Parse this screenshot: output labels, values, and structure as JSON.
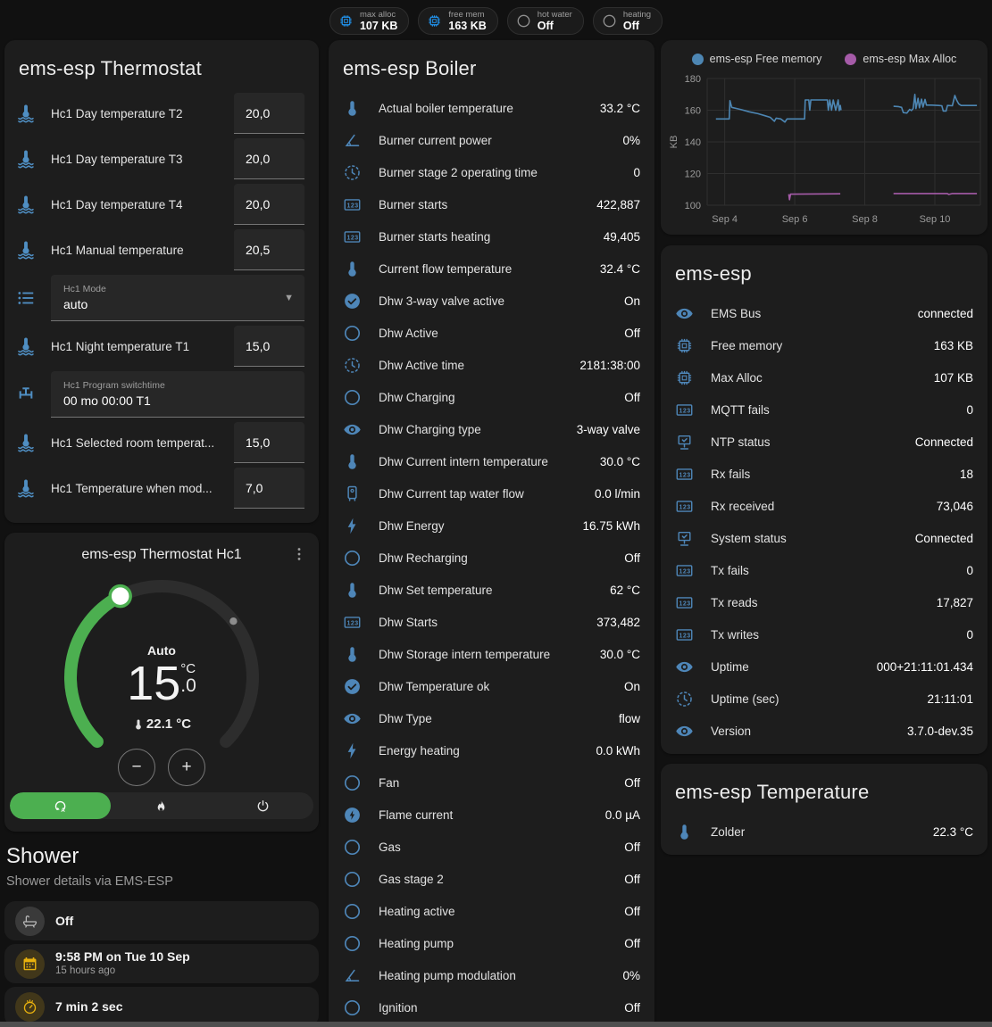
{
  "chips": [
    {
      "icon": "chip",
      "label": "max alloc",
      "value": "107 KB",
      "active": true
    },
    {
      "icon": "chip",
      "label": "free mem",
      "value": "163 KB",
      "active": true
    },
    {
      "icon": "circle",
      "label": "hot water",
      "value": "Off",
      "active": false
    },
    {
      "icon": "circle",
      "label": "heating",
      "value": "Off",
      "active": false
    }
  ],
  "thermostat_card": {
    "title": "ems-esp Thermostat",
    "fields": [
      {
        "icon": "coolant-thermometer",
        "type": "number",
        "label": "Hc1 Day temperature T2",
        "value": "20,0"
      },
      {
        "icon": "coolant-thermometer",
        "type": "number",
        "label": "Hc1 Day temperature T3",
        "value": "20,0"
      },
      {
        "icon": "coolant-thermometer",
        "type": "number",
        "label": "Hc1 Day temperature T4",
        "value": "20,0"
      },
      {
        "icon": "coolant-thermometer",
        "type": "number",
        "label": "Hc1 Manual temperature",
        "value": "20,5"
      },
      {
        "icon": "list",
        "type": "select",
        "label": "Hc1 Mode",
        "value": "auto"
      },
      {
        "icon": "coolant-thermometer",
        "type": "number",
        "label": "Hc1 Night temperature T1",
        "value": "15,0"
      },
      {
        "icon": "valve",
        "type": "text",
        "label": "Hc1 Program switchtime",
        "value": "00 mo 00:00 T1"
      },
      {
        "icon": "coolant-thermometer",
        "type": "number",
        "label": "Hc1 Selected room temperat...",
        "value": "15,0"
      },
      {
        "icon": "coolant-thermometer",
        "type": "number",
        "label": "Hc1 Temperature when mod...",
        "value": "7,0"
      }
    ]
  },
  "dial_card": {
    "title": "ems-esp Thermostat Hc1",
    "mode_label": "Auto",
    "target_int": "15",
    "target_frac": ".0",
    "unit": "°C",
    "current": "22.1 °C",
    "minus": "−",
    "plus": "+",
    "modes": [
      {
        "icon": "thermostat-auto",
        "name": "auto",
        "active": true
      },
      {
        "icon": "fire",
        "name": "heat",
        "active": false
      },
      {
        "icon": "power",
        "name": "off",
        "active": false
      }
    ]
  },
  "shower": {
    "title": "Shower",
    "subtitle": "Shower details via EMS-ESP",
    "cards": [
      {
        "icon": "bathtub",
        "style": "gray",
        "title": "Off",
        "subtitle": ""
      },
      {
        "icon": "calendar",
        "style": "amber",
        "title": "9:58 PM on Tue 10 Sep",
        "subtitle": "15 hours ago"
      },
      {
        "icon": "timer",
        "style": "amber",
        "title": "7 min 2 sec",
        "subtitle": ""
      },
      {
        "icon": "snowflake-alert",
        "style": "blue",
        "title": "",
        "subtitle": "",
        "centered": true,
        "cut": true
      }
    ]
  },
  "boiler_card": {
    "title": "ems-esp Boiler",
    "rows": [
      {
        "icon": "thermometer",
        "label": "Actual boiler temperature",
        "value": "33.2 °C"
      },
      {
        "icon": "angle",
        "label": "Burner current power",
        "value": "0%"
      },
      {
        "icon": "clock",
        "label": "Burner stage 2 operating time",
        "value": "0"
      },
      {
        "icon": "counter",
        "label": "Burner starts",
        "value": "422,887"
      },
      {
        "icon": "counter",
        "label": "Burner starts heating",
        "value": "49,405"
      },
      {
        "icon": "thermometer",
        "label": "Current flow temperature",
        "value": "32.4 °C"
      },
      {
        "icon": "check-circle",
        "label": "Dhw 3-way valve active",
        "value": "On"
      },
      {
        "icon": "circle",
        "label": "Dhw Active",
        "value": "Off"
      },
      {
        "icon": "clock",
        "label": "Dhw Active time",
        "value": "2181:38:00"
      },
      {
        "icon": "circle",
        "label": "Dhw Charging",
        "value": "Off"
      },
      {
        "icon": "eye",
        "label": "Dhw Charging type",
        "value": "3-way valve"
      },
      {
        "icon": "thermometer",
        "label": "Dhw Current intern temperature",
        "value": "30.0 °C"
      },
      {
        "icon": "water-boiler",
        "label": "Dhw Current tap water flow",
        "value": "0.0 l/min"
      },
      {
        "icon": "flash",
        "label": "Dhw Energy",
        "value": "16.75 kWh"
      },
      {
        "icon": "circle",
        "label": "Dhw Recharging",
        "value": "Off"
      },
      {
        "icon": "thermometer",
        "label": "Dhw Set temperature",
        "value": "62 °C"
      },
      {
        "icon": "counter",
        "label": "Dhw Starts",
        "value": "373,482"
      },
      {
        "icon": "thermometer",
        "label": "Dhw Storage intern temperature",
        "value": "30.0 °C"
      },
      {
        "icon": "check-circle",
        "label": "Dhw Temperature ok",
        "value": "On"
      },
      {
        "icon": "eye",
        "label": "Dhw Type",
        "value": "flow"
      },
      {
        "icon": "flash",
        "label": "Energy heating",
        "value": "0.0 kWh"
      },
      {
        "icon": "circle",
        "label": "Fan",
        "value": "Off"
      },
      {
        "icon": "flash-circle",
        "label": "Flame current",
        "value": "0.0 µA"
      },
      {
        "icon": "circle",
        "label": "Gas",
        "value": "Off"
      },
      {
        "icon": "circle",
        "label": "Gas stage 2",
        "value": "Off"
      },
      {
        "icon": "circle",
        "label": "Heating active",
        "value": "Off"
      },
      {
        "icon": "circle",
        "label": "Heating pump",
        "value": "Off"
      },
      {
        "icon": "angle",
        "label": "Heating pump modulation",
        "value": "0%"
      },
      {
        "icon": "circle",
        "label": "Ignition",
        "value": "Off"
      }
    ]
  },
  "system_card": {
    "title": "ems-esp",
    "rows": [
      {
        "icon": "eye",
        "label": "EMS Bus",
        "value": "connected"
      },
      {
        "icon": "chip",
        "label": "Free memory",
        "value": "163 KB"
      },
      {
        "icon": "chip",
        "label": "Max Alloc",
        "value": "107 KB"
      },
      {
        "icon": "counter",
        "label": "MQTT fails",
        "value": "0"
      },
      {
        "icon": "network",
        "label": "NTP status",
        "value": "Connected"
      },
      {
        "icon": "counter",
        "label": "Rx fails",
        "value": "18"
      },
      {
        "icon": "counter",
        "label": "Rx received",
        "value": "73,046"
      },
      {
        "icon": "network",
        "label": "System status",
        "value": "Connected"
      },
      {
        "icon": "counter",
        "label": "Tx fails",
        "value": "0"
      },
      {
        "icon": "counter",
        "label": "Tx reads",
        "value": "17,827"
      },
      {
        "icon": "counter",
        "label": "Tx writes",
        "value": "0"
      },
      {
        "icon": "eye",
        "label": "Uptime",
        "value": "000+21:11:01.434"
      },
      {
        "icon": "clock",
        "label": "Uptime (sec)",
        "value": "21:11:01"
      },
      {
        "icon": "eye",
        "label": "Version",
        "value": "3.7.0-dev.35"
      }
    ]
  },
  "temperature_card": {
    "title": "ems-esp Temperature",
    "rows": [
      {
        "icon": "thermometer",
        "label": "Zolder",
        "value": "22.3 °C"
      }
    ]
  },
  "chart_data": {
    "type": "line",
    "title": "",
    "ylabel": "KB",
    "ylim": [
      100,
      180
    ],
    "yticks": [
      100,
      120,
      140,
      160,
      180
    ],
    "xlim": [
      3.5,
      11.3
    ],
    "xticks": [
      {
        "x": 4,
        "label": "Sep 4"
      },
      {
        "x": 6,
        "label": "Sep 6"
      },
      {
        "x": 8,
        "label": "Sep 8"
      },
      {
        "x": 10,
        "label": "Sep 10"
      }
    ],
    "legend_position": "top",
    "grid": true,
    "series": [
      {
        "name": "ems-esp Free memory",
        "color": "#4d86b3",
        "unit": "KB",
        "segments": [
          [
            [
              3.75,
              154.5
            ],
            [
              4.13,
              154.5
            ],
            [
              4.15,
              166
            ],
            [
              4.2,
              161.8
            ],
            [
              4.45,
              160.5
            ],
            [
              4.7,
              159
            ],
            [
              4.95,
              157.8
            ],
            [
              5.15,
              156.5
            ],
            [
              5.3,
              155.5
            ],
            [
              5.42,
              153
            ],
            [
              5.47,
              155
            ],
            [
              5.6,
              154.5
            ],
            [
              5.72,
              152.5
            ],
            [
              5.78,
              154.5
            ],
            [
              6.28,
              154.5
            ],
            [
              6.3,
              166.5
            ],
            [
              6.4,
              166.5
            ],
            [
              6.43,
              160
            ],
            [
              6.46,
              166.5
            ],
            [
              6.93,
              166.5
            ],
            [
              6.96,
              160
            ],
            [
              7.0,
              166.5
            ],
            [
              7.05,
              160
            ],
            [
              7.1,
              166.5
            ],
            [
              7.17,
              160
            ],
            [
              7.24,
              166.5
            ],
            [
              7.27,
              159.8
            ],
            [
              7.3,
              163
            ],
            [
              7.32,
              160
            ]
          ],
          [
            [
              8.82,
              162.5
            ],
            [
              8.95,
              162.3
            ],
            [
              9.05,
              161.8
            ],
            [
              9.1,
              158.5
            ],
            [
              9.2,
              158.2
            ],
            [
              9.28,
              160.5
            ],
            [
              9.33,
              159.8
            ],
            [
              9.38,
              161
            ],
            [
              9.43,
              170
            ],
            [
              9.46,
              161
            ],
            [
              9.52,
              167.5
            ],
            [
              9.56,
              161.5
            ],
            [
              9.62,
              167
            ],
            [
              9.66,
              162
            ],
            [
              9.72,
              166.8
            ],
            [
              9.76,
              163.2
            ],
            [
              9.9,
              163.2
            ],
            [
              10.1,
              163
            ],
            [
              10.2,
              162.8
            ],
            [
              10.24,
              159.5
            ],
            [
              10.32,
              159.5
            ],
            [
              10.36,
              163
            ],
            [
              10.5,
              162.8
            ],
            [
              10.57,
              169.3
            ],
            [
              10.62,
              166.5
            ],
            [
              10.68,
              164
            ],
            [
              10.75,
              163
            ],
            [
              11.2,
              163
            ]
          ]
        ]
      },
      {
        "name": "ems-esp Max Alloc",
        "color": "#a55ba8",
        "unit": "KB",
        "segments": [
          [
            [
              5.83,
              107
            ],
            [
              5.85,
              103.5
            ],
            [
              5.88,
              107
            ],
            [
              7.3,
              107.2
            ]
          ],
          [
            [
              8.82,
              107.4
            ],
            [
              10.35,
              107.4
            ],
            [
              10.4,
              106.8
            ],
            [
              10.5,
              107.4
            ],
            [
              11.2,
              107.4
            ]
          ]
        ]
      }
    ]
  },
  "colors": {
    "accent_green": "#4caf50",
    "icon_blue": "#4e86b8",
    "chip_blue": "#2196f3",
    "amber": "#e8b10e",
    "chart_blue": "#4d86b3",
    "chart_purple": "#a55ba8"
  }
}
